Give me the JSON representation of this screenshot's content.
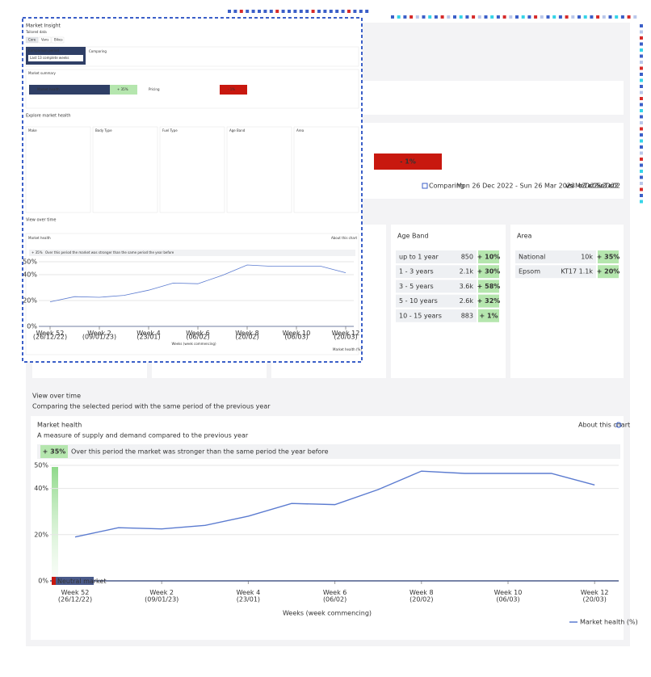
{
  "thumbnail": {
    "title": "Market Insight",
    "subtitle": "Tailored data",
    "tabs": [
      "Core",
      "Vans",
      "Bikes"
    ],
    "comparison_period_label": "Comparison period",
    "comparison_period": "Last 13 complete weeks",
    "comparing_label": "Comparing",
    "market_summary": "Market summary",
    "market_health": "Market health",
    "market_health_value": "+ 35%",
    "pricing": "Pricing",
    "pricing_value": "- 1%",
    "explore_title": "Explore market health",
    "filters": [
      "Make",
      "Body Type",
      "Fuel Type",
      "Age Band",
      "Area"
    ],
    "view_over_time": "View over time"
  },
  "summary": {
    "pricing_value": "- 1%",
    "comparing_label": "Comparing",
    "current_period": "Mon 26 Dec 2022 - Sun 26 Mar 2023",
    "vs": "vs",
    "previous_period": "Mon 27 Dec 2021 - Sun 27 Dec 2022"
  },
  "age_band": {
    "title": "Age Band",
    "rows": [
      {
        "label": "up to 1 year",
        "count": "850",
        "change": "+ 10%"
      },
      {
        "label": "1 - 3 years",
        "count": "2.1k",
        "change": "+ 30%"
      },
      {
        "label": "3 - 5 years",
        "count": "3.6k",
        "change": "+ 58%"
      },
      {
        "label": "5 - 10 years",
        "count": "2.6k",
        "change": "+ 32%"
      },
      {
        "label": "10 - 15 years",
        "count": "883",
        "change": "+ 1%"
      }
    ]
  },
  "area": {
    "title": "Area",
    "rows": [
      {
        "label": "National",
        "count": "10k",
        "change": "+ 35%"
      },
      {
        "label": "Epsom",
        "count": "KT17 1.1k",
        "change": "+ 20%"
      }
    ]
  },
  "view_over_time": {
    "title": "View over time",
    "subtitle": "Comparing the selected period with the same period of the previous year"
  },
  "chart_data": {
    "type": "line",
    "title": "Market health",
    "subtitle": "A measure of supply and demand compared to the previous year",
    "link": "About this chart",
    "badge": "+ 35%",
    "badge_text": "Over this period the market was stronger than the same period the year before",
    "categories": [
      "Week 52",
      null,
      "Week 2",
      null,
      "Week 4",
      null,
      "Week 6",
      null,
      "Week 8",
      null,
      "Week 10",
      null,
      "Week 12"
    ],
    "category_dates": [
      "(26/12/22)",
      null,
      "(09/01/23)",
      null,
      "(23/01)",
      null,
      "(06/02)",
      null,
      "(20/02)",
      null,
      "(06/03)",
      null,
      "(20/03)"
    ],
    "series": [
      {
        "name": "Market health (%)",
        "color": "#5b7bd0",
        "values": [
          19,
          23,
          22.5,
          24,
          28,
          33.5,
          33,
          39.5,
          47.5,
          46.5,
          46.5,
          46.5,
          41.5
        ]
      }
    ],
    "ylim": [
      0,
      50
    ],
    "yticks": [
      {
        "value": 0,
        "label": "0%"
      },
      {
        "value": 20,
        "label": "20%"
      },
      {
        "value": 40,
        "label": "40%"
      },
      {
        "value": 50,
        "label": "50%"
      }
    ],
    "xlabel": "Weeks (week commencing)",
    "annotation": "Neutral market"
  }
}
